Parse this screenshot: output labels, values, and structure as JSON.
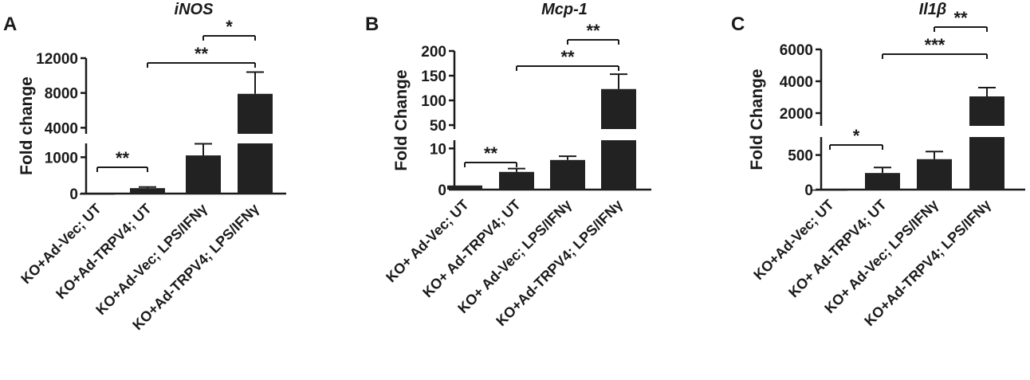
{
  "chart_data": [
    {
      "type": "bar",
      "panel": "A",
      "title": "iNOS",
      "ylabel": "Fold change",
      "y_axis": "broken",
      "lower_ticks": [
        0,
        1000
      ],
      "upper_ticks": [
        4000,
        8000,
        12000
      ],
      "categories": [
        "KO+Ad-Vec; UT",
        "KO+Ad-TRPV4; UT",
        "KO+Ad-Vec; LPS/IFNγ",
        "KO+Ad-TRPV4; LPS/IFNγ"
      ],
      "values": [
        1,
        150,
        1050,
        7900
      ],
      "errors": [
        0,
        30,
        320,
        2500
      ],
      "bar_colors": [
        "#1a1a1a",
        "#1a1a1a",
        "#111111",
        "#2a2a2a"
      ],
      "significance": [
        {
          "from": 0,
          "to": 1,
          "label": "**"
        },
        {
          "from": 1,
          "to": 3,
          "label": "**"
        },
        {
          "from": 2,
          "to": 3,
          "label": "*"
        }
      ]
    },
    {
      "type": "bar",
      "panel": "B",
      "title": "Mcp-1",
      "ylabel": "Fold Change",
      "y_axis": "broken",
      "lower_ticks": [
        0,
        10
      ],
      "upper_ticks": [
        50,
        100,
        150,
        200
      ],
      "categories": [
        "KO+ Ad-Vec; UT",
        "KO+ Ad-TRPV4; UT",
        "KO+ Ad-Vec; LPS/IFNγ",
        "KO+Ad-TRPV4; LPS/IFNγ"
      ],
      "values": [
        1,
        4.3,
        7.2,
        123
      ],
      "errors": [
        0,
        0.8,
        0.9,
        30
      ],
      "bar_colors": [
        "#1a1a1a",
        "#1a1a1a",
        "#111111",
        "#2a2a2a"
      ],
      "significance": [
        {
          "from": 0,
          "to": 1,
          "label": "**"
        },
        {
          "from": 1,
          "to": 3,
          "label": "**"
        },
        {
          "from": 2,
          "to": 3,
          "label": "**"
        }
      ]
    },
    {
      "type": "bar",
      "panel": "C",
      "title": "Il1β",
      "ylabel": "Fold Change",
      "y_axis": "broken",
      "lower_ticks": [
        0,
        500
      ],
      "upper_ticks": [
        2000,
        4000,
        6000
      ],
      "categories": [
        "KO+Ad-Vec; UT",
        "KO+ Ad-TRPV4; UT",
        "KO+ Ad-Vec; LPS/IFNγ",
        "KO+Ad-TRPV4; LPS/IFNγ"
      ],
      "values": [
        1,
        240,
        440,
        3050
      ],
      "errors": [
        0,
        80,
        110,
        550
      ],
      "bar_colors": [
        "#1a1a1a",
        "#1a1a1a",
        "#111111",
        "#2a2a2a"
      ],
      "significance": [
        {
          "from": 0,
          "to": 1,
          "label": "*"
        },
        {
          "from": 1,
          "to": 3,
          "label": "***"
        },
        {
          "from": 2,
          "to": 3,
          "label": "**"
        }
      ]
    }
  ]
}
